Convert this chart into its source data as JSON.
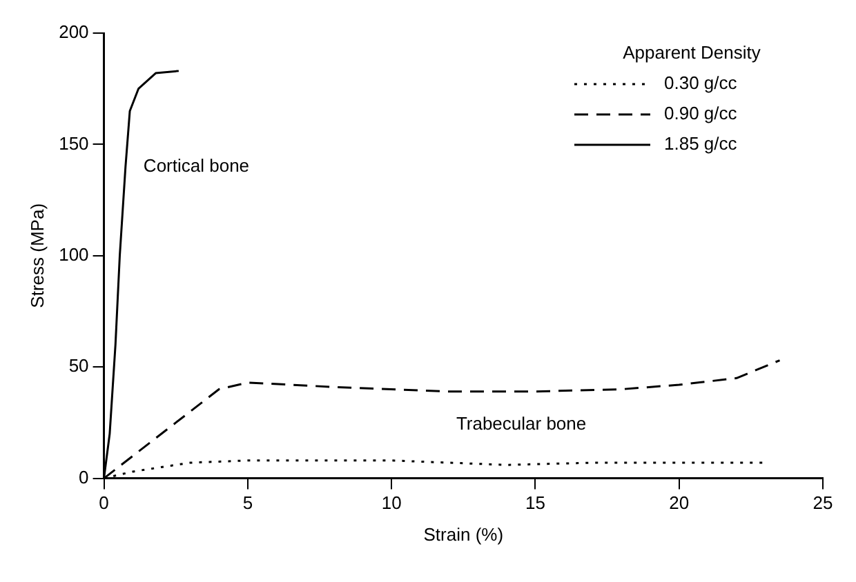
{
  "chart_data": {
    "type": "line",
    "xlabel": "Strain (%)",
    "ylabel": "Stress (MPa)",
    "legend_title": "Apparent Density",
    "legend": "top right",
    "grid": false,
    "marker": "none",
    "xlim": [
      0,
      25
    ],
    "xticks": [
      0,
      5,
      10,
      15,
      20,
      25
    ],
    "ylim": [
      0,
      200
    ],
    "yticks": [
      0,
      50,
      100,
      150,
      200
    ],
    "annotations": [
      "Cortical bone",
      "Trabecular bone"
    ],
    "series": [
      {
        "name": "0.30 g/cc",
        "color": "#000000",
        "line_style": "dotted",
        "x": [
          0,
          1,
          3,
          5,
          10,
          14,
          17,
          20,
          23
        ],
        "values": [
          0,
          3,
          7,
          8,
          8,
          6,
          7,
          7,
          7
        ]
      },
      {
        "name": "0.90 g/cc",
        "color": "#000000",
        "line_style": "dashed",
        "x": [
          0,
          4,
          5,
          8,
          12,
          15,
          18,
          20,
          22,
          23.5
        ],
        "values": [
          0,
          40,
          43,
          41,
          39,
          39,
          40,
          42,
          45,
          53
        ]
      },
      {
        "name": "1.85 g/cc",
        "color": "#000000",
        "line_style": "solid",
        "x": [
          0,
          0.2,
          0.4,
          0.55,
          0.75,
          0.9,
          1.2,
          1.8,
          2.6
        ],
        "values": [
          0,
          20,
          60,
          100,
          140,
          165,
          175,
          182,
          183
        ]
      }
    ]
  }
}
